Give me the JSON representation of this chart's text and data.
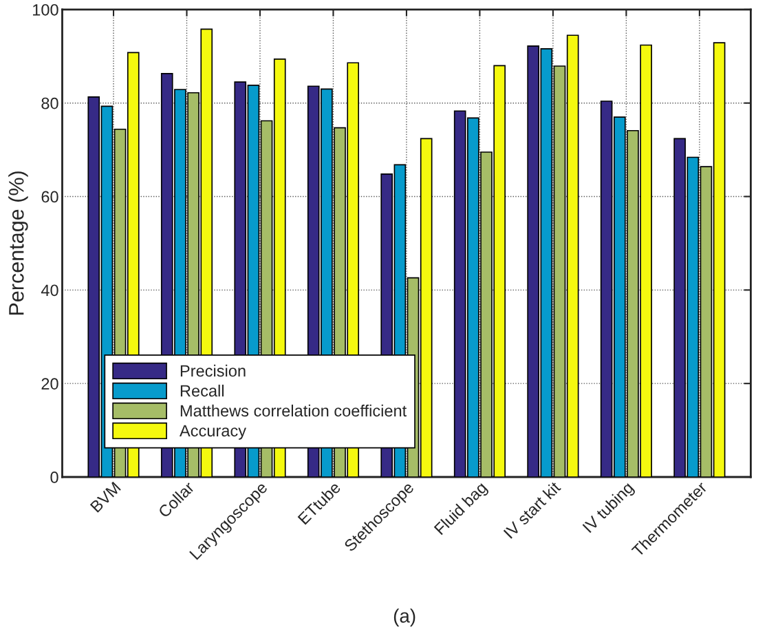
{
  "chart_data": {
    "type": "bar",
    "ylabel": "Percentage (%)",
    "categories": [
      "BVM",
      "Collar",
      "Laryngoscope",
      "ETtube",
      "Stethoscope",
      "Fluid bag",
      "IV start kit",
      "IV tubing",
      "Thermometer"
    ],
    "series": [
      {
        "name": "Precision",
        "color": "#362a86",
        "values": [
          81.3,
          86.3,
          84.5,
          83.6,
          64.8,
          78.3,
          92.2,
          80.4,
          72.4
        ]
      },
      {
        "name": "Recall",
        "color": "#079bcc",
        "values": [
          79.3,
          82.9,
          83.8,
          83.0,
          66.8,
          76.8,
          91.6,
          77.0,
          68.4
        ]
      },
      {
        "name": "Matthews correlation coefficient",
        "color": "#a6bd67",
        "values": [
          74.4,
          82.2,
          76.2,
          74.7,
          42.6,
          69.5,
          87.9,
          74.1,
          66.4
        ]
      },
      {
        "name": "Accuracy",
        "color": "#f5f90f",
        "values": [
          90.8,
          95.8,
          89.4,
          88.6,
          72.4,
          88.0,
          94.5,
          92.4,
          92.9
        ]
      }
    ],
    "ylim": [
      0,
      100
    ],
    "yticks": [
      0,
      20,
      40,
      60,
      80,
      100
    ],
    "grid": true,
    "legend": "bottom left",
    "annotations": [
      "(a)"
    ]
  }
}
